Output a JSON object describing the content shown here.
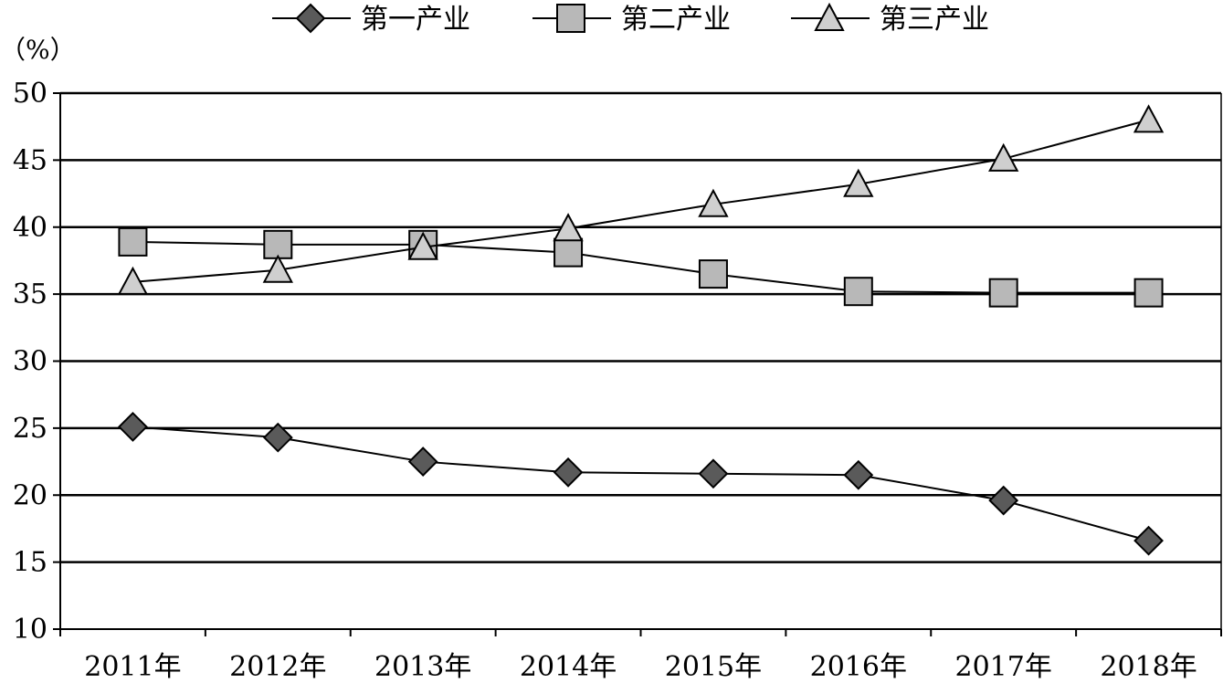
{
  "chart_data": {
    "type": "line",
    "unit_label": "（%）",
    "categories": [
      "2011年",
      "2012年",
      "2013年",
      "2014年",
      "2015年",
      "2016年",
      "2017年",
      "2018年"
    ],
    "ylim": [
      10,
      50
    ],
    "yticks": [
      10,
      15,
      20,
      25,
      30,
      35,
      40,
      45,
      50
    ],
    "grid": true,
    "legend_position": "top",
    "series": [
      {
        "name": "第一产业",
        "marker": "diamond-icon",
        "color": "#5a5a5a",
        "values": [
          25.1,
          24.3,
          22.5,
          21.7,
          21.6,
          21.5,
          19.6,
          16.6
        ]
      },
      {
        "name": "第二产业",
        "marker": "square-icon",
        "color": "#b8b8b8",
        "values": [
          38.9,
          38.7,
          38.7,
          38.1,
          36.5,
          35.2,
          35.1,
          35.1
        ]
      },
      {
        "name": "第三产业",
        "marker": "triangle-icon",
        "color": "#cfcfcf",
        "values": [
          35.9,
          36.8,
          38.5,
          39.9,
          41.7,
          43.2,
          45.1,
          48.0
        ]
      }
    ]
  }
}
